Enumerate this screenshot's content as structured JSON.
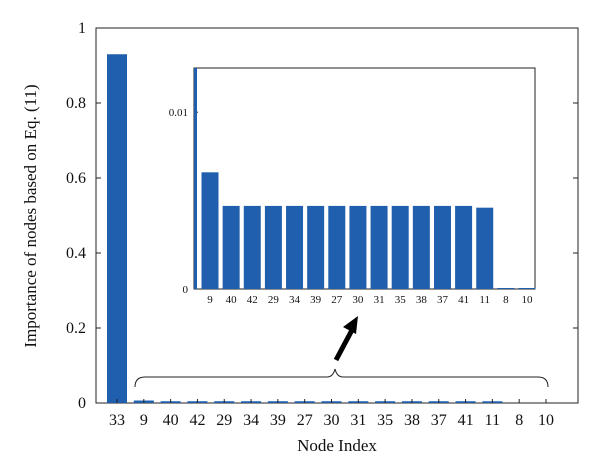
{
  "chart_data": {
    "type": "bar",
    "xlabel": "Node Index",
    "ylabel": "Importance of nodes based on Eq. (11)",
    "ylim": [
      0,
      1
    ],
    "yticks": [
      "0",
      "0.2",
      "0.4",
      "0.6",
      "0.8",
      "1"
    ],
    "categories": [
      "33",
      "9",
      "40",
      "42",
      "29",
      "34",
      "39",
      "27",
      "30",
      "31",
      "35",
      "38",
      "37",
      "41",
      "11",
      "8",
      "10"
    ],
    "values": [
      0.93,
      0.0066,
      0.0047,
      0.0047,
      0.0047,
      0.0047,
      0.0047,
      0.0047,
      0.0047,
      0.0047,
      0.0047,
      0.0047,
      0.0047,
      0.0047,
      0.0046,
      0.0,
      0.0
    ],
    "bar_color": "#1f5fad",
    "inset": {
      "categories": [
        "9",
        "40",
        "42",
        "29",
        "34",
        "39",
        "27",
        "30",
        "31",
        "35",
        "38",
        "37",
        "41",
        "11",
        "8",
        "10"
      ],
      "values": [
        0.0066,
        0.0047,
        0.0047,
        0.0047,
        0.0047,
        0.0047,
        0.0047,
        0.0047,
        0.0047,
        0.0047,
        0.0047,
        0.0047,
        0.0047,
        0.0046,
        0.0,
        0.0
      ],
      "ylim": [
        0,
        0.0125
      ],
      "yticks": [
        "0",
        "0.01"
      ],
      "ytick_values": [
        0,
        0.01
      ]
    }
  }
}
